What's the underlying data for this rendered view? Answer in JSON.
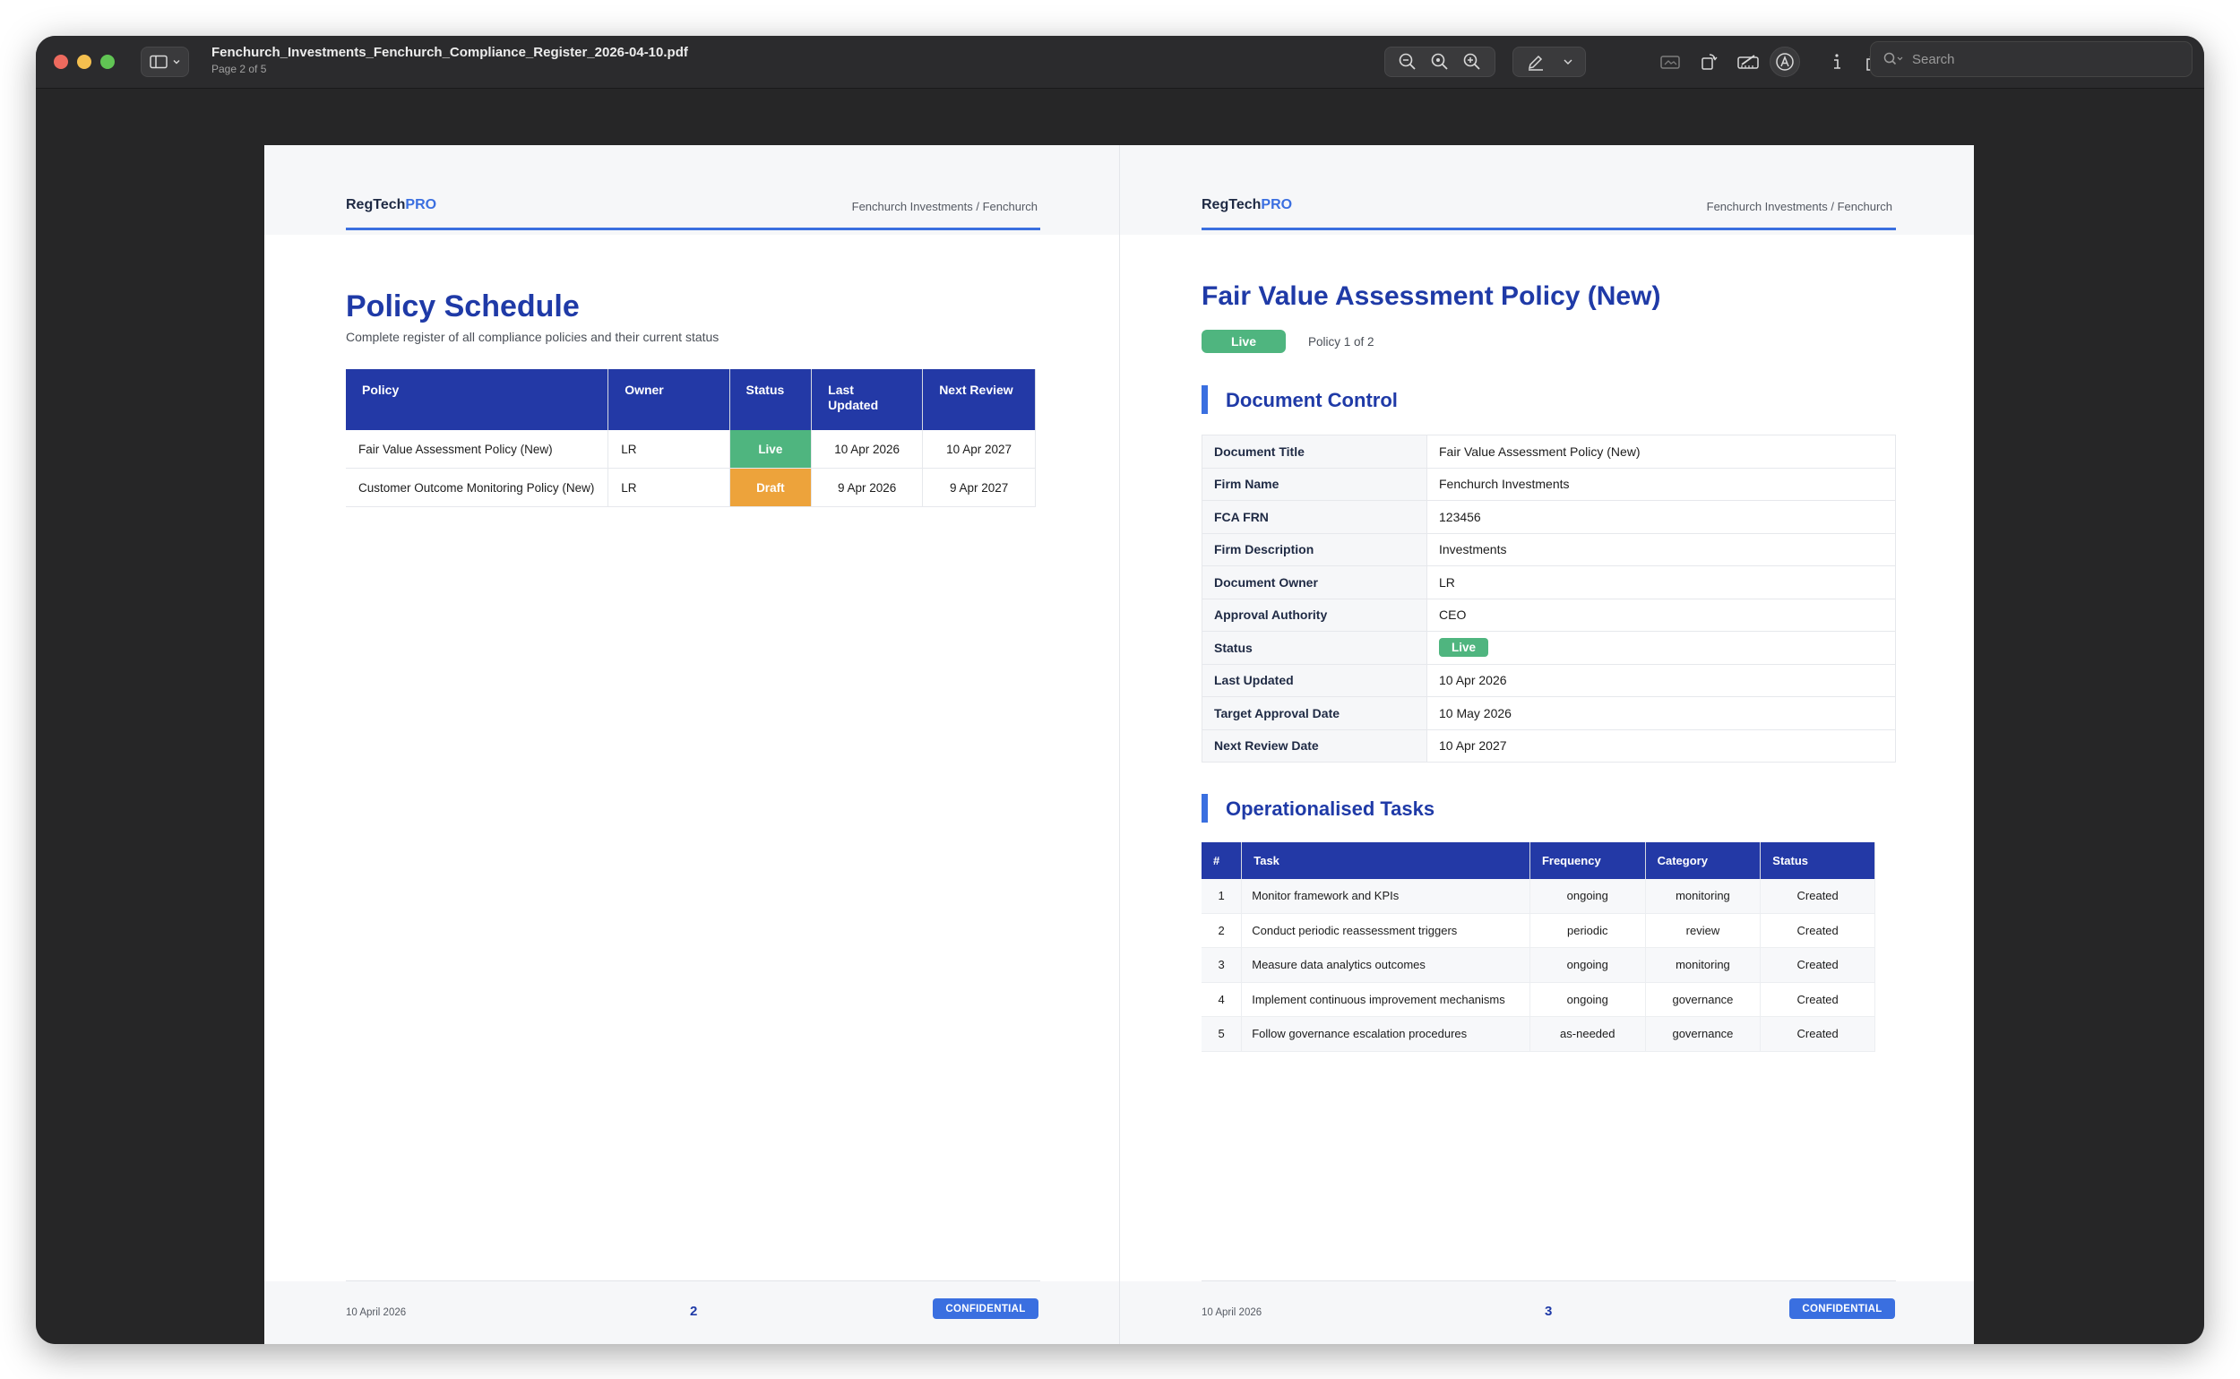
{
  "window": {
    "title": "Fenchurch_Investments_Fenchurch_Compliance_Register_2026-04-10.pdf",
    "subtitle": "Page 2 of 5"
  },
  "toolbar": {
    "search_placeholder": "Search",
    "icons": [
      "sidebar-icon",
      "zoom-out-icon",
      "zoom-fit-icon",
      "zoom-in-icon",
      "highlight-pen-icon",
      "chevron-down-icon",
      "crop-icon",
      "rotate-icon",
      "markup-toolbox-icon",
      "annotate-icon",
      "info-icon",
      "share-icon",
      "search-icon"
    ]
  },
  "colors": {
    "accent": "#3a6fe0",
    "header_blue": "#2339a6",
    "title_blue": "#1f3aa7",
    "live_green": "#4fb57f",
    "draft_orange": "#eda33b"
  },
  "left_page": {
    "brand_prefix": "RegTech",
    "brand_suffix": "PRO",
    "header_right": "Fenchurch Investments / Fenchurch",
    "title": "Policy Schedule",
    "subtitle": "Complete register of all compliance policies and their current status",
    "table": {
      "headers": [
        "Policy",
        "Owner",
        "Status",
        "Last\nUpdated",
        "Next Review"
      ],
      "rows": [
        [
          "Fair Value Assessment Policy (New)",
          "LR",
          "Live",
          "10 Apr 2026",
          "10 Apr 2027"
        ],
        [
          "Customer Outcome Monitoring Policy (New)",
          "LR",
          "Draft",
          "9 Apr 2026",
          "9 Apr 2027"
        ]
      ]
    },
    "footer": {
      "date": "10 April 2026",
      "page": "2",
      "badge": "CONFIDENTIAL"
    }
  },
  "right_page": {
    "brand_prefix": "RegTech",
    "brand_suffix": "PRO",
    "header_right": "Fenchurch Investments / Fenchurch",
    "title": "Fair Value Assessment Policy (New)",
    "status_pill": "Live",
    "policy_count": "Policy 1 of 2",
    "doc_control_heading": "Document Control",
    "doc_control": [
      [
        "Document Title",
        "Fair Value Assessment Policy (New)"
      ],
      [
        "Firm Name",
        "Fenchurch Investments"
      ],
      [
        "FCA FRN",
        "123456"
      ],
      [
        "Firm Description",
        "Investments"
      ],
      [
        "Document Owner",
        "LR"
      ],
      [
        "Approval Authority",
        "CEO"
      ],
      [
        "Status",
        "Live"
      ],
      [
        "Last Updated",
        "10 Apr 2026"
      ],
      [
        "Target Approval Date",
        "10 May 2026"
      ],
      [
        "Next Review Date",
        "10 Apr 2027"
      ]
    ],
    "tasks_heading": "Operationalised Tasks",
    "tasks": {
      "headers": [
        "#",
        "Task",
        "Frequency",
        "Category",
        "Status"
      ],
      "rows": [
        [
          "1",
          "Monitor framework and KPIs",
          "ongoing",
          "monitoring",
          "Created"
        ],
        [
          "2",
          "Conduct periodic reassessment triggers",
          "periodic",
          "review",
          "Created"
        ],
        [
          "3",
          "Measure data analytics outcomes",
          "ongoing",
          "monitoring",
          "Created"
        ],
        [
          "4",
          "Implement continuous improvement mechanisms",
          "ongoing",
          "governance",
          "Created"
        ],
        [
          "5",
          "Follow governance escalation procedures",
          "as-needed",
          "governance",
          "Created"
        ]
      ]
    },
    "footer": {
      "date": "10 April 2026",
      "page": "3",
      "badge": "CONFIDENTIAL"
    }
  }
}
